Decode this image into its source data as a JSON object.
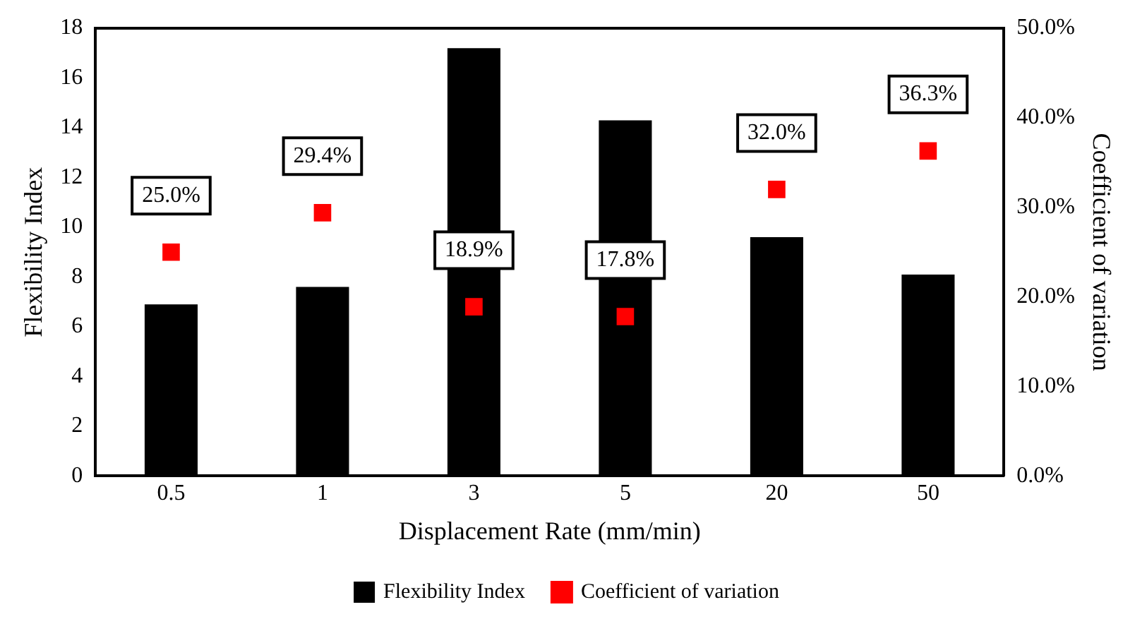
{
  "chart_data": {
    "type": "bar",
    "xlabel": "Displacement Rate (mm/min)",
    "ylabel": "Flexibility Index",
    "y2label": "Coefficient of variation",
    "categories": [
      "0.5",
      "1",
      "3",
      "5",
      "20",
      "50"
    ],
    "series": [
      {
        "name": "Flexibility Index",
        "color": "#000000",
        "values": [
          6.9,
          7.6,
          17.2,
          14.3,
          9.6,
          8.1
        ]
      },
      {
        "name": "Coefficient of variation",
        "type": "scatter",
        "axis": "y2",
        "color": "#ff0000",
        "marker": "square",
        "x": [
          "0.5",
          "1",
          "3",
          "5",
          "20",
          "50"
        ],
        "values": [
          25.0,
          29.4,
          18.9,
          17.8,
          32.0,
          36.3
        ],
        "value_labels": [
          "25.0%",
          "29.4%",
          "18.9%",
          "17.8%",
          "32.0%",
          "36.3%"
        ]
      }
    ],
    "ylim": [
      0,
      18
    ],
    "yticks": [
      0,
      2,
      4,
      6,
      8,
      10,
      12,
      14,
      16,
      18
    ],
    "y2lim": [
      0,
      50
    ],
    "y2ticks": [
      {
        "value": 0,
        "label": "0.0%"
      },
      {
        "value": 10,
        "label": "10.0%"
      },
      {
        "value": 20,
        "label": "20.0%"
      },
      {
        "value": 30,
        "label": "30.0%"
      },
      {
        "value": 40,
        "label": "40.0%"
      },
      {
        "value": 50,
        "label": "50.0%"
      }
    ],
    "grid": false,
    "legend": "bottom"
  }
}
